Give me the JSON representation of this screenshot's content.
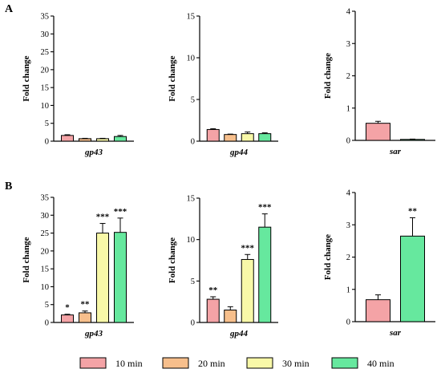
{
  "panels": [
    "A",
    "B"
  ],
  "legend": [
    {
      "label": "10 min",
      "color": "#f4a3a6"
    },
    {
      "label": "20 min",
      "color": "#f7bf8c"
    },
    {
      "label": "30 min",
      "color": "#f8f8a8"
    },
    {
      "label": "40 min",
      "color": "#66e89e"
    }
  ],
  "chart_data": [
    {
      "type": "bar",
      "panel": "A",
      "title": "",
      "xlabel": "gp43",
      "ylabel": "Fold change",
      "ylim": [
        0,
        35
      ],
      "yticks": [
        "0",
        "5",
        "10",
        "15",
        "20",
        "25",
        "30",
        "35"
      ],
      "categories": [
        "10 min",
        "20 min",
        "30 min",
        "40 min"
      ],
      "values": [
        1.6,
        0.7,
        0.7,
        1.3
      ],
      "errors": [
        0.2,
        0.1,
        0.1,
        0.3
      ],
      "significance": [
        "",
        "",
        "",
        ""
      ]
    },
    {
      "type": "bar",
      "panel": "A",
      "title": "",
      "xlabel": "gp44",
      "ylabel": "Fold change",
      "ylim": [
        0,
        15
      ],
      "yticks": [
        "0",
        "5",
        "10",
        "15"
      ],
      "categories": [
        "10 min",
        "20 min",
        "30 min",
        "40 min"
      ],
      "values": [
        1.4,
        0.8,
        0.9,
        0.9
      ],
      "errors": [
        0.1,
        0.05,
        0.2,
        0.1
      ],
      "significance": [
        "",
        "",
        "",
        ""
      ]
    },
    {
      "type": "bar",
      "panel": "A",
      "title": "",
      "xlabel": "sar",
      "ylabel": "Fold change",
      "ylim": [
        0,
        4
      ],
      "yticks": [
        "0",
        "1",
        "2",
        "3",
        "4"
      ],
      "categories": [
        "10 min",
        "40 min"
      ],
      "values": [
        0.53,
        0.03
      ],
      "errors": [
        0.06,
        0.01
      ],
      "significance": [
        "",
        ""
      ]
    },
    {
      "type": "bar",
      "panel": "B",
      "title": "",
      "xlabel": "gp43",
      "ylabel": "Fold change",
      "ylim": [
        0,
        35
      ],
      "yticks": [
        "0",
        "5",
        "10",
        "15",
        "20",
        "25",
        "30",
        "35"
      ],
      "categories": [
        "10 min",
        "20 min",
        "30 min",
        "40 min"
      ],
      "values": [
        2.1,
        2.7,
        25.0,
        25.2
      ],
      "errors": [
        0.2,
        0.5,
        2.7,
        4.0
      ],
      "significance": [
        "*",
        "**",
        "***",
        "***"
      ]
    },
    {
      "type": "bar",
      "panel": "B",
      "title": "",
      "xlabel": "gp44",
      "ylabel": "Fold change",
      "ylim": [
        0,
        15
      ],
      "yticks": [
        "0",
        "5",
        "10",
        "15"
      ],
      "categories": [
        "10 min",
        "20 min",
        "30 min",
        "40 min"
      ],
      "values": [
        2.8,
        1.5,
        7.6,
        11.5
      ],
      "errors": [
        0.3,
        0.4,
        0.6,
        1.6
      ],
      "significance": [
        "**",
        "",
        "***",
        "***"
      ]
    },
    {
      "type": "bar",
      "panel": "B",
      "title": "",
      "xlabel": "sar",
      "ylabel": "Fold change",
      "ylim": [
        0,
        4
      ],
      "yticks": [
        "0",
        "1",
        "2",
        "3",
        "4"
      ],
      "categories": [
        "10 min",
        "40 min"
      ],
      "values": [
        0.68,
        2.65
      ],
      "errors": [
        0.15,
        0.57
      ],
      "significance": [
        "",
        "**"
      ]
    }
  ]
}
